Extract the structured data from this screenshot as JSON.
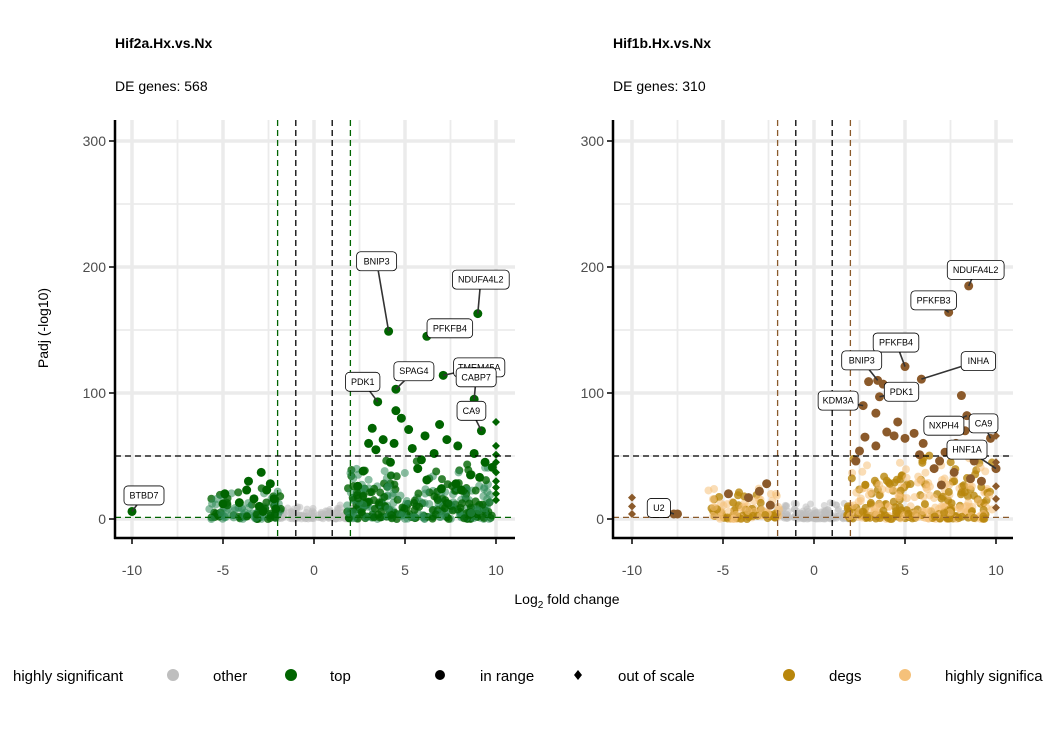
{
  "x_axis_title": {
    "prefix": "Log",
    "sub": "2",
    "suffix": " fold change"
  },
  "y_axis_title": "Padj (-log10)",
  "colors": {
    "other": "#bebebe",
    "hif2a_top": "#006400",
    "hif2a_highly_significant": "#2e8b57",
    "hif1b_degs": "#b8860b",
    "hif1b_highly_significant": "#f5c17a",
    "hif1b_top": "#8b5a2b",
    "threshold": "#000000"
  },
  "legend": [
    {
      "label": "highly significant",
      "symbol": "none",
      "color": ""
    },
    {
      "label": "other",
      "symbol": "circle",
      "color": "#bebebe"
    },
    {
      "label": "top",
      "symbol": "circle",
      "color": "#006400"
    },
    {
      "label": "in range",
      "symbol": "circle",
      "color": "#000000"
    },
    {
      "label": "out of scale",
      "symbol": "diamond",
      "color": "#000000"
    },
    {
      "label": "degs",
      "symbol": "circle",
      "color": "#b8860b"
    },
    {
      "label": "highly significa",
      "symbol": "circle",
      "color": "#f5c17a"
    }
  ],
  "chart_data": [
    {
      "type": "scatter",
      "title": "Hif2a.Hx.vs.Nx",
      "subtitle": "DE genes: 568",
      "xlabel": "Log2 fold change",
      "ylabel": "Padj (-log10)",
      "xlim": [
        -10.5,
        10.5
      ],
      "ylim": [
        -12,
        300
      ],
      "x_ticks": [
        -10,
        -5,
        0,
        5,
        10
      ],
      "y_ticks": [
        0,
        100,
        200,
        300
      ],
      "grid": true,
      "thresholds": {
        "fc_inner": [
          -1,
          1
        ],
        "fc_outer": [
          -2,
          2
        ],
        "padj_line": 50,
        "padj_low": 1.3,
        "outer_color": "#006400"
      },
      "top_color": "#006400",
      "sig_color": "#2e8b57",
      "labeled_genes": [
        {
          "gene": "BNIP3",
          "x": 4.1,
          "y": 149
        },
        {
          "gene": "NDUFA4L2",
          "x": 9.0,
          "y": 163
        },
        {
          "gene": "PFKFB4",
          "x": 6.2,
          "y": 145
        },
        {
          "gene": "TMEM45A",
          "x": 7.1,
          "y": 114
        },
        {
          "gene": "SPAG4",
          "x": 4.5,
          "y": 103
        },
        {
          "gene": "PDK1",
          "x": 3.5,
          "y": 93
        },
        {
          "gene": "CABP7",
          "x": 8.8,
          "y": 95
        },
        {
          "gene": "CA9",
          "x": 9.2,
          "y": 70
        },
        {
          "gene": "BTBD7",
          "x": -10.0,
          "y": 6
        }
      ],
      "top_points": [
        {
          "x": 3.2,
          "y": 72
        },
        {
          "x": 3.0,
          "y": 60
        },
        {
          "x": 4.8,
          "y": 80
        },
        {
          "x": 6.1,
          "y": 66
        },
        {
          "x": 5.4,
          "y": 56
        },
        {
          "x": 5.9,
          "y": 47
        },
        {
          "x": 4.2,
          "y": 45
        },
        {
          "x": 7.3,
          "y": 63
        },
        {
          "x": 7.9,
          "y": 58
        },
        {
          "x": 8.8,
          "y": 52
        },
        {
          "x": 8.6,
          "y": 35
        },
        {
          "x": 9.4,
          "y": 45
        },
        {
          "x": 9.8,
          "y": 41
        },
        {
          "x": 6.9,
          "y": 75
        },
        {
          "x": 5.2,
          "y": 71
        },
        {
          "x": 2.7,
          "y": 38
        },
        {
          "x": 3.8,
          "y": 63
        },
        {
          "x": 4.4,
          "y": 60
        },
        {
          "x": 5.7,
          "y": 40
        },
        {
          "x": 6.6,
          "y": 52
        },
        {
          "x": 7.8,
          "y": 28
        },
        {
          "x": 8.1,
          "y": 23
        },
        {
          "x": 9.1,
          "y": 33
        },
        {
          "x": 7.0,
          "y": 24
        },
        {
          "x": 4.5,
          "y": 86
        },
        {
          "x": 3.4,
          "y": 55
        },
        {
          "x": 2.4,
          "y": 26
        },
        {
          "x": 6.2,
          "y": 31
        },
        {
          "x": -2.9,
          "y": 37
        },
        {
          "x": -3.6,
          "y": 30
        },
        {
          "x": -4.9,
          "y": 20
        },
        {
          "x": -5.0,
          "y": 12
        },
        {
          "x": -4.1,
          "y": 13
        },
        {
          "x": -3.3,
          "y": 16
        },
        {
          "x": -2.6,
          "y": 23
        },
        {
          "x": -2.4,
          "y": 28
        },
        {
          "x": -3.7,
          "y": 23
        },
        {
          "x": -3.0,
          "y": 10
        },
        {
          "x": -2.8,
          "y": 6
        },
        {
          "x": -2.2,
          "y": 16
        },
        {
          "x": -2.1,
          "y": 8
        }
      ],
      "out_of_scale_diamonds": [
        {
          "x": 10,
          "y": 58
        },
        {
          "x": 10,
          "y": 51
        },
        {
          "x": 10,
          "y": 45
        },
        {
          "x": 10,
          "y": 37
        },
        {
          "x": 10,
          "y": 30
        },
        {
          "x": 10,
          "y": 25
        },
        {
          "x": 10,
          "y": 20
        },
        {
          "x": 10,
          "y": 15
        },
        {
          "x": 10,
          "y": 77
        }
      ]
    },
    {
      "type": "scatter",
      "title": "Hif1b.Hx.vs.Nx",
      "subtitle": "DE genes: 310",
      "xlabel": "Log2 fold change",
      "ylabel": "Padj (-log10)",
      "xlim": [
        -10.5,
        10.5
      ],
      "ylim": [
        -12,
        300
      ],
      "x_ticks": [
        -10,
        -5,
        0,
        5,
        10
      ],
      "y_ticks": [
        0,
        100,
        200,
        300
      ],
      "grid": true,
      "thresholds": {
        "fc_inner": [
          -1,
          1
        ],
        "fc_outer": [
          -2,
          2
        ],
        "padj_line": 50,
        "padj_low": 1.3,
        "outer_color": "#8b5a2b"
      },
      "top_color": "#8b5a2b",
      "sig_color": "#b8860b",
      "labeled_genes": [
        {
          "gene": "NDUFA4L2",
          "x": 8.5,
          "y": 185
        },
        {
          "gene": "PFKFB3",
          "x": 7.4,
          "y": 164
        },
        {
          "gene": "INHA",
          "x": 5.9,
          "y": 111
        },
        {
          "gene": "PFKFB4",
          "x": 5.0,
          "y": 121
        },
        {
          "gene": "BNIP3",
          "x": 3.5,
          "y": 110
        },
        {
          "gene": "KDM3A",
          "x": 2.7,
          "y": 90
        },
        {
          "gene": "PDK1",
          "x": 3.6,
          "y": 97
        },
        {
          "gene": "NXPH4",
          "x": 8.4,
          "y": 82
        },
        {
          "gene": "CA9",
          "x": 9.7,
          "y": 64
        },
        {
          "gene": "HNF1A",
          "x": 10.0,
          "y": 40
        },
        {
          "gene": "U2",
          "x": -7.7,
          "y": 4
        }
      ],
      "top_points": [
        {
          "x": 3.0,
          "y": 109
        },
        {
          "x": 3.8,
          "y": 107
        },
        {
          "x": 3.4,
          "y": 84
        },
        {
          "x": 4.4,
          "y": 66
        },
        {
          "x": 5.0,
          "y": 64
        },
        {
          "x": 5.5,
          "y": 68
        },
        {
          "x": 6.0,
          "y": 60
        },
        {
          "x": 4.0,
          "y": 69
        },
        {
          "x": 3.4,
          "y": 58
        },
        {
          "x": 8.1,
          "y": 98
        },
        {
          "x": 8.3,
          "y": 70
        },
        {
          "x": 7.8,
          "y": 60
        },
        {
          "x": 7.2,
          "y": 53
        },
        {
          "x": 6.9,
          "y": 46
        },
        {
          "x": 8.8,
          "y": 46
        },
        {
          "x": 8.6,
          "y": 32
        },
        {
          "x": 7.7,
          "y": 37
        },
        {
          "x": 9.0,
          "y": 55
        },
        {
          "x": 6.6,
          "y": 40
        },
        {
          "x": 9.2,
          "y": 30
        },
        {
          "x": 7.0,
          "y": 27
        },
        {
          "x": 2.5,
          "y": 54
        },
        {
          "x": 2.3,
          "y": 46
        },
        {
          "x": 2.8,
          "y": 65
        },
        {
          "x": 4.6,
          "y": 77
        },
        {
          "x": 5.8,
          "y": 51
        },
        {
          "x": -3.0,
          "y": 22
        },
        {
          "x": -3.6,
          "y": 17
        },
        {
          "x": -2.6,
          "y": 28
        },
        {
          "x": -4.7,
          "y": 20
        },
        {
          "x": -2.4,
          "y": 11
        },
        {
          "x": -7.5,
          "y": 4
        }
      ],
      "out_of_scale_diamonds": [
        {
          "x": 10,
          "y": 66
        },
        {
          "x": 10,
          "y": 45
        },
        {
          "x": 10,
          "y": 26
        },
        {
          "x": 10,
          "y": 16
        },
        {
          "x": 10,
          "y": 9
        },
        {
          "x": -10,
          "y": 17
        },
        {
          "x": -10,
          "y": 10
        },
        {
          "x": -10,
          "y": 4
        }
      ]
    }
  ]
}
